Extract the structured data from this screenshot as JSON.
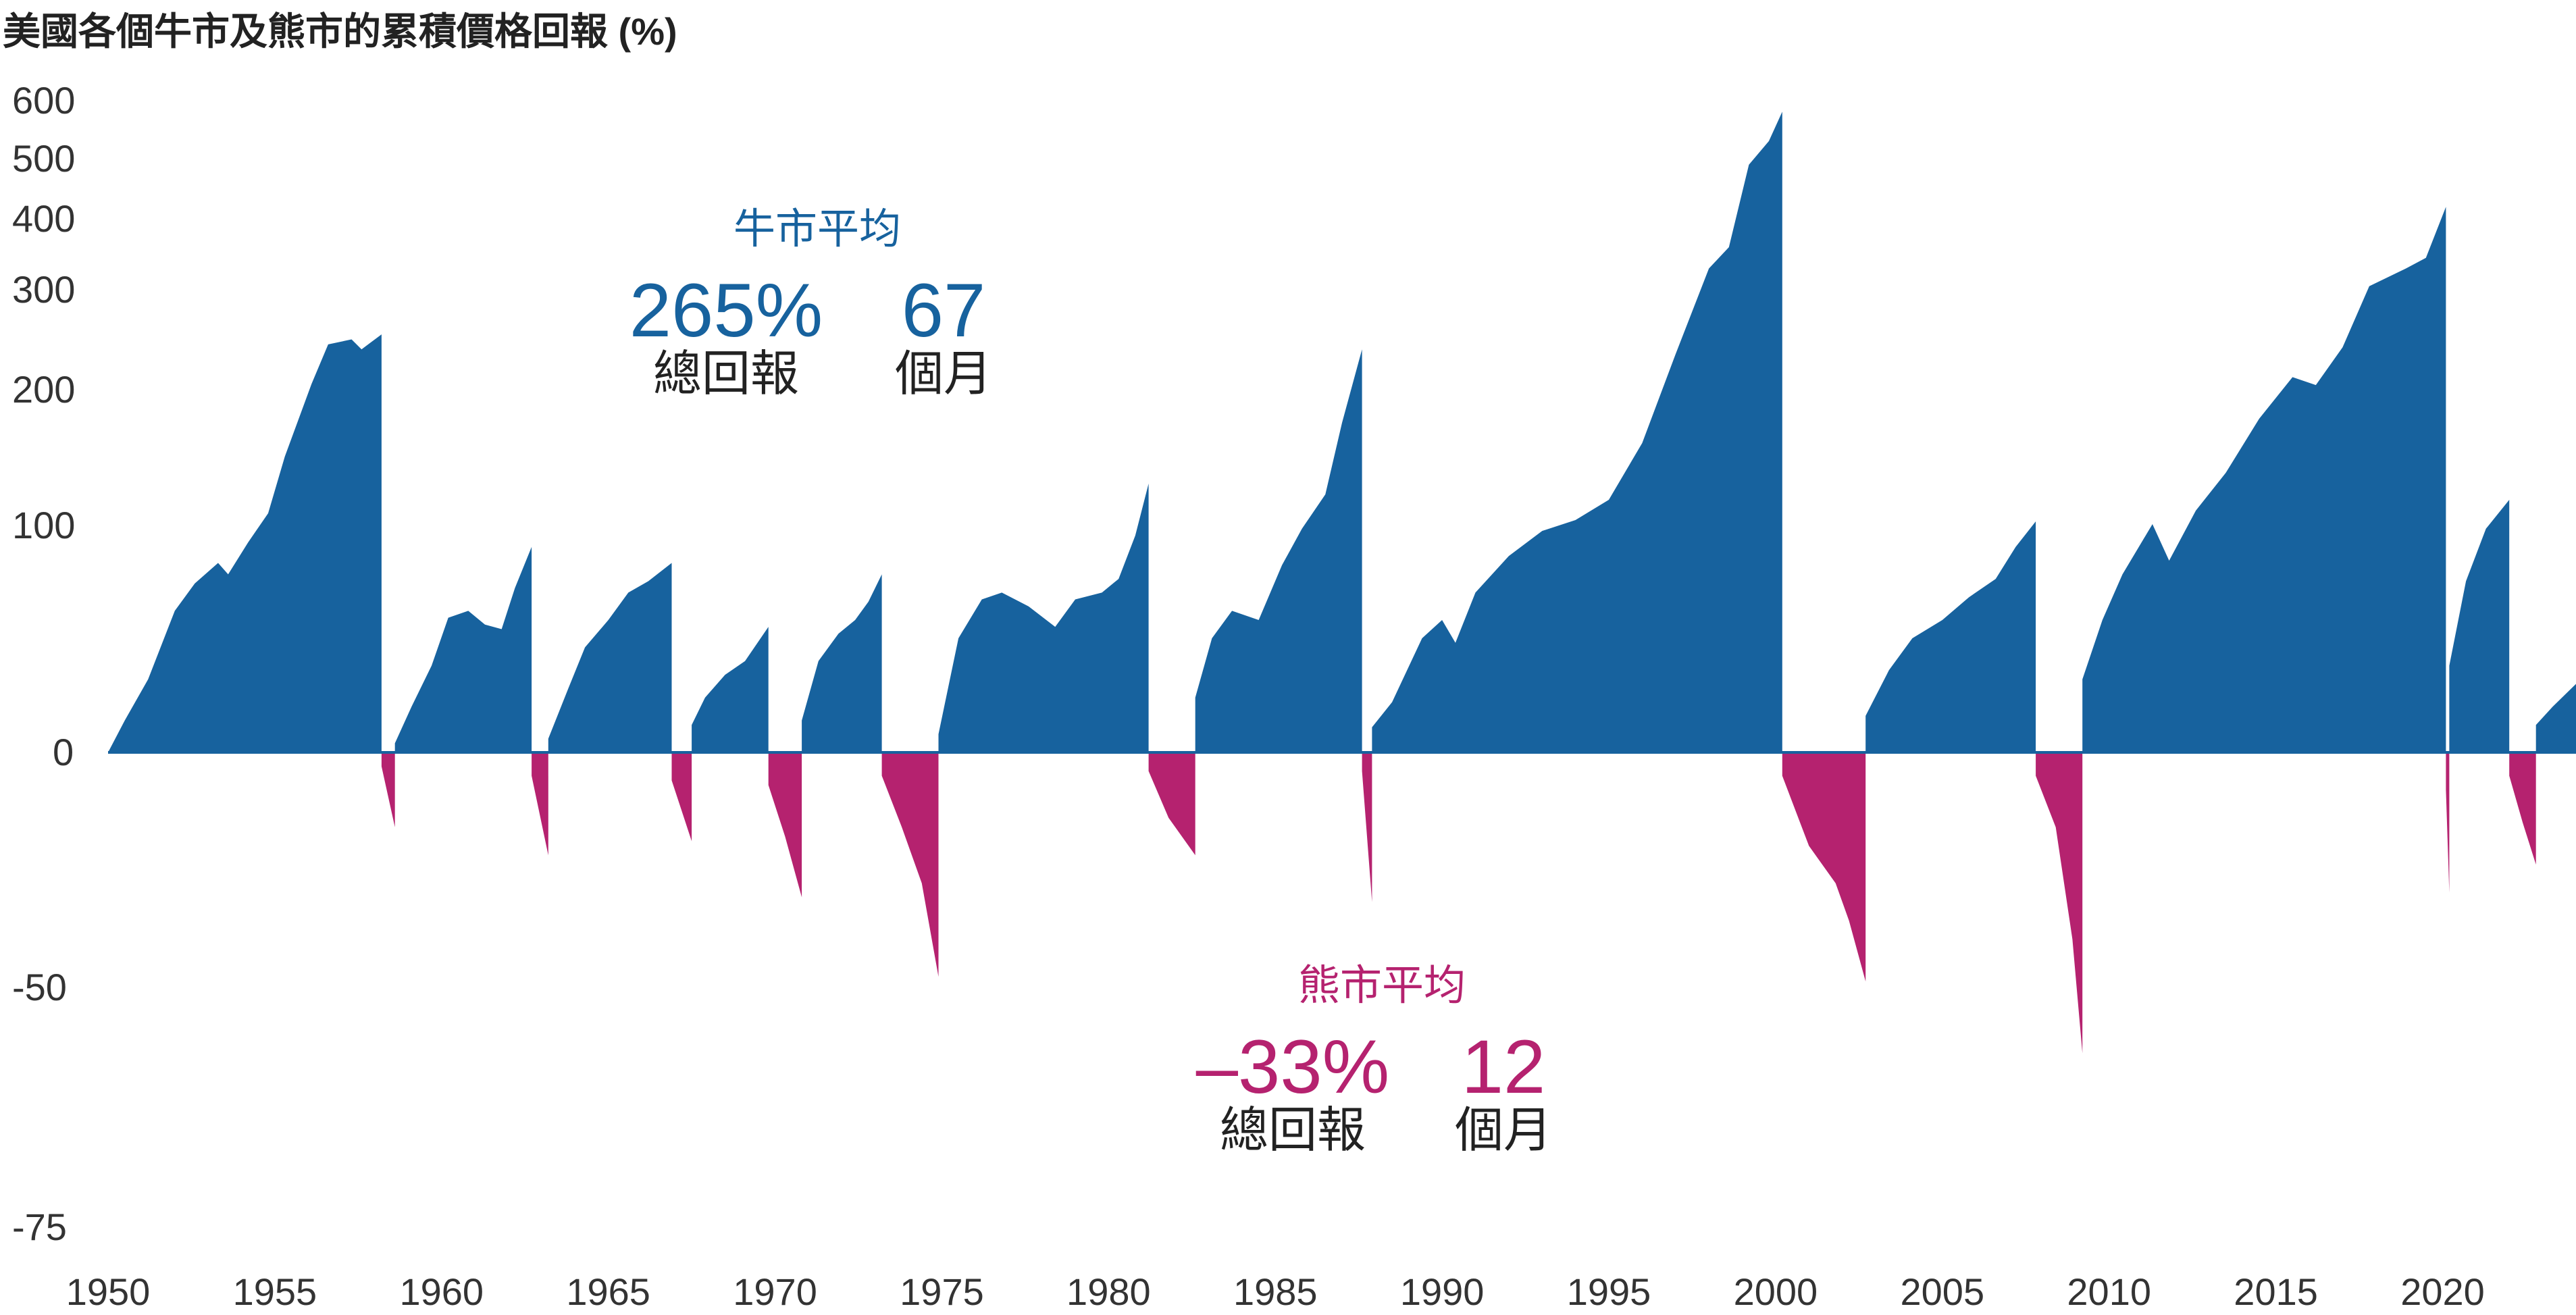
{
  "chart_data": {
    "type": "area",
    "title": "美國各個牛市及熊市的累積價格回報 (%)",
    "xlabel": "",
    "ylabel": "",
    "xlim": [
      1950,
      2024
    ],
    "x_ticks": [
      "1950",
      "1955",
      "1960",
      "1965",
      "1970",
      "1975",
      "1980",
      "1985",
      "1990",
      "1995",
      "2000",
      "2005",
      "2010",
      "2015",
      "2020"
    ],
    "y_ticks": [
      "600",
      "500",
      "400",
      "300",
      "200",
      "100",
      "0",
      "-50",
      "-75"
    ],
    "y_scale": "non-linear (expanded near zero, compressed above 100)",
    "grid": false,
    "legend": "none",
    "colors": {
      "bull": "#17629e",
      "bear": "#b5226f",
      "axis": "#333333",
      "text": "#222222"
    },
    "series": [
      {
        "name": "",
        "kind": "bull",
        "segments": [
          {
            "start": 1950.0,
            "end": 1958.2,
            "points": [
              [
                1950.0,
                0
              ],
              [
                1950.5,
                14
              ],
              [
                1951.2,
                32
              ],
              [
                1952.0,
                62
              ],
              [
                1952.6,
                74
              ],
              [
                1953.3,
                83
              ],
              [
                1953.6,
                78
              ],
              [
                1954.2,
                92
              ],
              [
                1954.8,
                108
              ],
              [
                1955.3,
                150
              ],
              [
                1956.1,
                205
              ],
              [
                1956.6,
                245
              ],
              [
                1957.3,
                250
              ],
              [
                1957.6,
                240
              ],
              [
                1958.2,
                255
              ]
            ]
          },
          {
            "start": 1958.6,
            "end": 1962.7,
            "points": [
              [
                1958.6,
                4
              ],
              [
                1959.1,
                20
              ],
              [
                1959.7,
                38
              ],
              [
                1960.2,
                59
              ],
              [
                1960.8,
                62
              ],
              [
                1961.3,
                56
              ],
              [
                1961.8,
                54
              ],
              [
                1962.2,
                72
              ],
              [
                1962.7,
                90
              ]
            ]
          },
          {
            "start": 1963.2,
            "end": 1966.9,
            "points": [
              [
                1963.2,
                6
              ],
              [
                1963.8,
                28
              ],
              [
                1964.3,
                46
              ],
              [
                1965.0,
                58
              ],
              [
                1965.6,
                70
              ],
              [
                1966.2,
                75
              ],
              [
                1966.9,
                83
              ]
            ]
          },
          {
            "start": 1967.5,
            "end": 1969.8,
            "points": [
              [
                1967.5,
                12
              ],
              [
                1967.9,
                24
              ],
              [
                1968.5,
                34
              ],
              [
                1969.1,
                40
              ],
              [
                1969.8,
                55
              ]
            ]
          },
          {
            "start": 1970.8,
            "end": 1973.2,
            "points": [
              [
                1970.8,
                14
              ],
              [
                1971.3,
                40
              ],
              [
                1971.9,
                52
              ],
              [
                1972.4,
                58
              ],
              [
                1972.8,
                66
              ],
              [
                1973.2,
                78
              ]
            ]
          },
          {
            "start": 1974.9,
            "end": 1981.2,
            "points": [
              [
                1974.9,
                8
              ],
              [
                1975.5,
                50
              ],
              [
                1976.2,
                67
              ],
              [
                1976.8,
                70
              ],
              [
                1977.6,
                64
              ],
              [
                1978.4,
                55
              ],
              [
                1979.0,
                67
              ],
              [
                1979.8,
                70
              ],
              [
                1980.3,
                76
              ],
              [
                1980.8,
                95
              ],
              [
                1981.2,
                130
              ]
            ]
          },
          {
            "start": 1982.6,
            "end": 1987.6,
            "points": [
              [
                1982.6,
                24
              ],
              [
                1983.1,
                50
              ],
              [
                1983.7,
                62
              ],
              [
                1984.5,
                58
              ],
              [
                1985.2,
                82
              ],
              [
                1985.8,
                98
              ],
              [
                1986.5,
                122
              ],
              [
                1987.0,
                175
              ],
              [
                1987.6,
                240
              ]
            ]
          },
          {
            "start": 1987.9,
            "end": 2000.2,
            "points": [
              [
                1987.9,
                11
              ],
              [
                1988.5,
                22
              ],
              [
                1989.4,
                50
              ],
              [
                1990.0,
                58
              ],
              [
                1990.4,
                48
              ],
              [
                1991.0,
                70
              ],
              [
                1992.0,
                86
              ],
              [
                1993.0,
                97
              ],
              [
                1994.0,
                103
              ],
              [
                1995.0,
                118
              ],
              [
                1996.0,
                160
              ],
              [
                1997.0,
                235
              ],
              [
                1998.0,
                330
              ],
              [
                1998.6,
                360
              ],
              [
                1999.2,
                490
              ],
              [
                1999.8,
                530
              ],
              [
                2000.2,
                580
              ]
            ]
          },
          {
            "start": 2002.7,
            "end": 2007.8,
            "points": [
              [
                2002.7,
                16
              ],
              [
                2003.4,
                36
              ],
              [
                2004.1,
                50
              ],
              [
                2005.0,
                58
              ],
              [
                2005.8,
                68
              ],
              [
                2006.6,
                76
              ],
              [
                2007.2,
                90
              ],
              [
                2007.8,
                102
              ]
            ]
          },
          {
            "start": 2009.2,
            "end": 2020.1,
            "points": [
              [
                2009.2,
                32
              ],
              [
                2009.8,
                58
              ],
              [
                2010.4,
                78
              ],
              [
                2011.3,
                100
              ],
              [
                2011.8,
                84
              ],
              [
                2012.6,
                110
              ],
              [
                2013.5,
                138
              ],
              [
                2014.5,
                178
              ],
              [
                2015.5,
                212
              ],
              [
                2016.2,
                204
              ],
              [
                2017.0,
                242
              ],
              [
                2017.8,
                305
              ],
              [
                2018.9,
                330
              ],
              [
                2019.5,
                345
              ],
              [
                2020.1,
                420
              ]
            ]
          },
          {
            "start": 2020.2,
            "end": 2022.0,
            "points": [
              [
                2020.2,
                38
              ],
              [
                2020.7,
                75
              ],
              [
                2021.3,
                98
              ],
              [
                2022.0,
                118
              ]
            ]
          },
          {
            "start": 2022.8,
            "end": 2024.0,
            "points": [
              [
                2022.8,
                12
              ],
              [
                2023.3,
                20
              ],
              [
                2024.0,
                30
              ]
            ]
          }
        ]
      },
      {
        "name": "",
        "kind": "bear",
        "segments": [
          {
            "start": 1958.2,
            "end": 1958.6,
            "points": [
              [
                1958.2,
                -3
              ],
              [
                1958.6,
                -16
              ]
            ]
          },
          {
            "start": 1962.7,
            "end": 1963.2,
            "points": [
              [
                1962.7,
                -5
              ],
              [
                1963.2,
                -22
              ]
            ]
          },
          {
            "start": 1966.9,
            "end": 1967.5,
            "points": [
              [
                1966.9,
                -6
              ],
              [
                1967.5,
                -19
              ]
            ]
          },
          {
            "start": 1969.8,
            "end": 1970.8,
            "points": [
              [
                1969.8,
                -7
              ],
              [
                1970.3,
                -18
              ],
              [
                1970.8,
                -31
              ]
            ]
          },
          {
            "start": 1973.2,
            "end": 1974.9,
            "points": [
              [
                1973.2,
                -5
              ],
              [
                1973.8,
                -16
              ],
              [
                1974.4,
                -28
              ],
              [
                1974.9,
                -48
              ]
            ]
          },
          {
            "start": 1981.2,
            "end": 1982.6,
            "points": [
              [
                1981.2,
                -4
              ],
              [
                1981.8,
                -14
              ],
              [
                1982.6,
                -22
              ]
            ]
          },
          {
            "start": 1987.6,
            "end": 1987.9,
            "points": [
              [
                1987.6,
                -4
              ],
              [
                1987.9,
                -32
              ]
            ]
          },
          {
            "start": 2000.2,
            "end": 2002.7,
            "points": [
              [
                2000.2,
                -5
              ],
              [
                2001.0,
                -20
              ],
              [
                2001.8,
                -28
              ],
              [
                2002.2,
                -36
              ],
              [
                2002.7,
                -49
              ]
            ]
          },
          {
            "start": 2007.8,
            "end": 2009.2,
            "points": [
              [
                2007.8,
                -5
              ],
              [
                2008.4,
                -16
              ],
              [
                2008.9,
                -40
              ],
              [
                2009.2,
                -57
              ]
            ]
          },
          {
            "start": 2020.1,
            "end": 2020.2,
            "points": [
              [
                2020.1,
                -8
              ],
              [
                2020.2,
                -30
              ]
            ]
          },
          {
            "start": 2022.0,
            "end": 2022.8,
            "points": [
              [
                2022.0,
                -5
              ],
              [
                2022.4,
                -15
              ],
              [
                2022.8,
                -24
              ]
            ]
          }
        ]
      }
    ],
    "annotations": {
      "bull": {
        "heading": "牛市平均",
        "return_value": "265%",
        "return_label": "總回報",
        "duration_value": "67",
        "duration_label": "個月"
      },
      "bear": {
        "heading": "熊市平均",
        "return_value": "–33%",
        "return_label": "總回報",
        "duration_value": "12",
        "duration_label": "個月"
      }
    }
  }
}
